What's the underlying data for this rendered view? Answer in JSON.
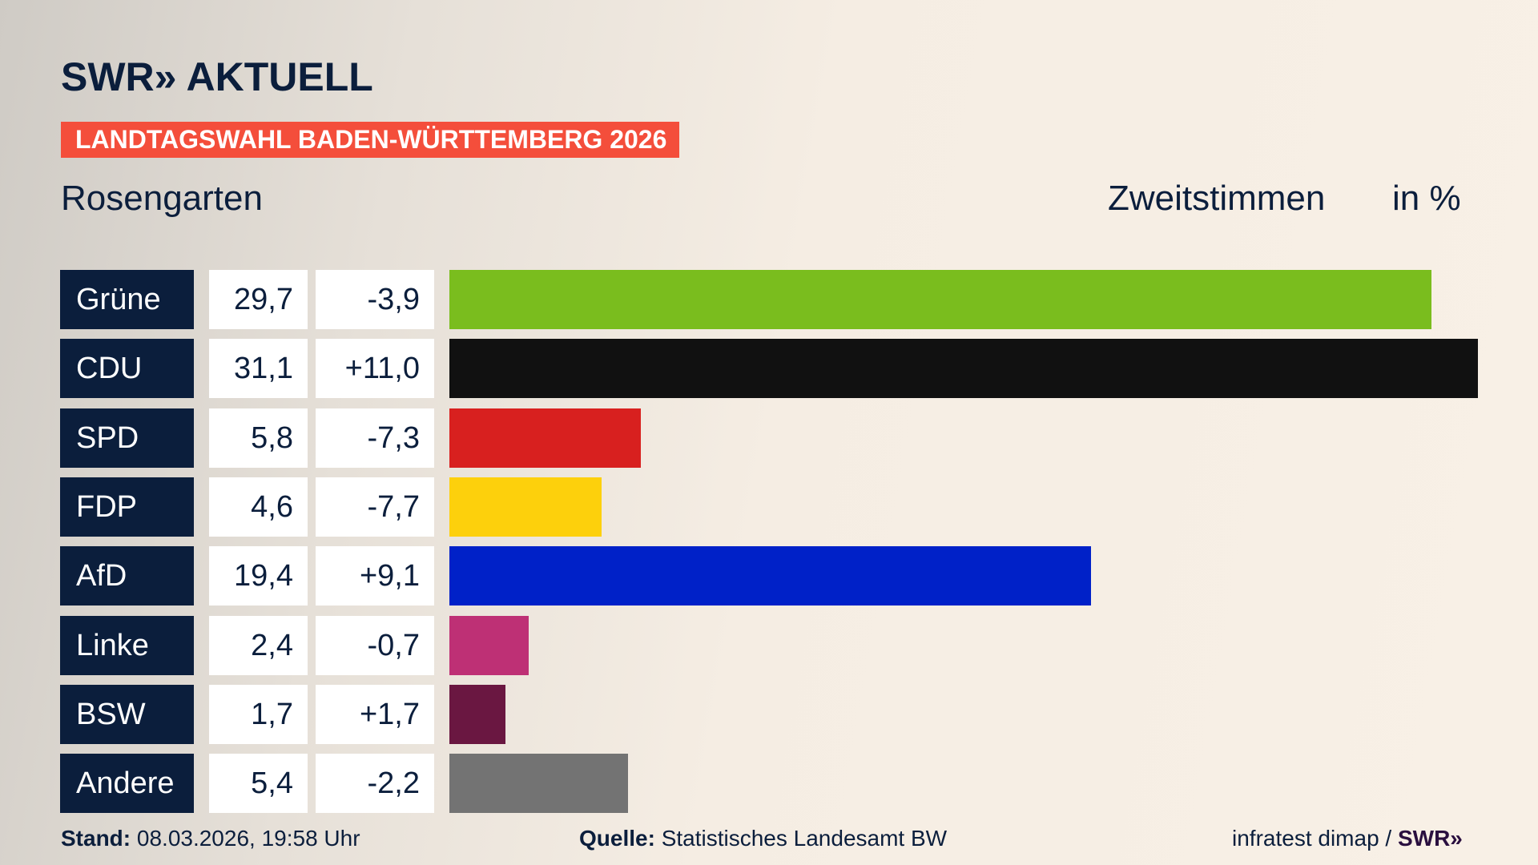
{
  "header": {
    "logo": "SWR» AKTUELL",
    "banner": "LANDTAGSWAHL BADEN-WÜRTTEMBERG 2026",
    "banner_color": "#f44e3b",
    "place": "Rosengarten",
    "metric": "Zweitstimmen",
    "unit": "in %"
  },
  "chart_data": {
    "type": "bar",
    "orientation": "horizontal",
    "categories": [
      "Grüne",
      "CDU",
      "SPD",
      "FDP",
      "AfD",
      "Linke",
      "BSW",
      "Andere"
    ],
    "values": [
      29.7,
      31.1,
      5.8,
      4.6,
      19.4,
      2.4,
      1.7,
      5.4
    ],
    "value_labels": [
      "29,7",
      "31,1",
      "5,8",
      "4,6",
      "19,4",
      "2,4",
      "1,7",
      "5,4"
    ],
    "changes": [
      "-3,9",
      "+11,0",
      "-7,3",
      "-7,7",
      "+9,1",
      "-0,7",
      "+1,7",
      "-2,2"
    ],
    "colors": [
      "#7abd1e",
      "#111111",
      "#d8201f",
      "#fdd00c",
      "#0021c8",
      "#be3075",
      "#6a1741",
      "#737373"
    ],
    "xlim": [
      0,
      31.1
    ],
    "grid": false
  },
  "footer": {
    "stand_label": "Stand:",
    "stand_value": " 08.03.2026, 19:58 Uhr",
    "source_label": "Quelle:",
    "source_value": " Statistisches Landesamt BW",
    "credit": "infratest dimap / ",
    "credit_logo": "SWR»"
  }
}
